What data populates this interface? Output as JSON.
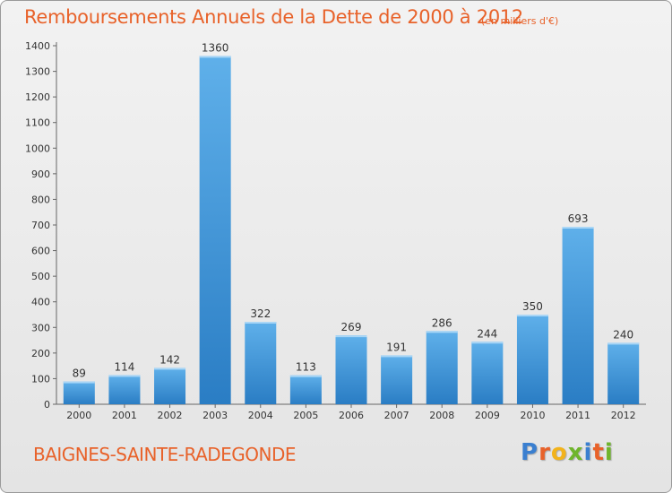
{
  "title": "Remboursements Annuels de la Dette de 2000 à 2012",
  "subtitle": "(en milliers d'€)",
  "city": "BAIGNES-SAINTE-RADEGONDE",
  "logo": {
    "letters": [
      {
        "char": "P",
        "color": "#3a7fd0"
      },
      {
        "char": "r",
        "color": "#e8622a"
      },
      {
        "char": "o",
        "color": "#f2b31c"
      },
      {
        "char": "x",
        "color": "#6fb52c"
      },
      {
        "char": "i",
        "color": "#3a7fd0"
      },
      {
        "char": "t",
        "color": "#e8622a"
      },
      {
        "char": "i",
        "color": "#6fb52c"
      }
    ]
  },
  "colors": {
    "accent": "#e8622a",
    "bar_top": "#5fb0ea",
    "bar_bottom": "#2a7dc4"
  },
  "chart_data": {
    "type": "bar",
    "categories": [
      "2000",
      "2001",
      "2002",
      "2003",
      "2004",
      "2005",
      "2006",
      "2007",
      "2008",
      "2009",
      "2010",
      "2011",
      "2012"
    ],
    "values": [
      89,
      114,
      142,
      1360,
      322,
      113,
      269,
      191,
      286,
      244,
      350,
      693,
      240
    ],
    "ylim": [
      0,
      1400
    ],
    "yticks": [
      0,
      100,
      200,
      300,
      400,
      500,
      600,
      700,
      800,
      900,
      1000,
      1100,
      1200,
      1300,
      1400
    ],
    "grid": false,
    "xlabel": "",
    "ylabel": ""
  }
}
